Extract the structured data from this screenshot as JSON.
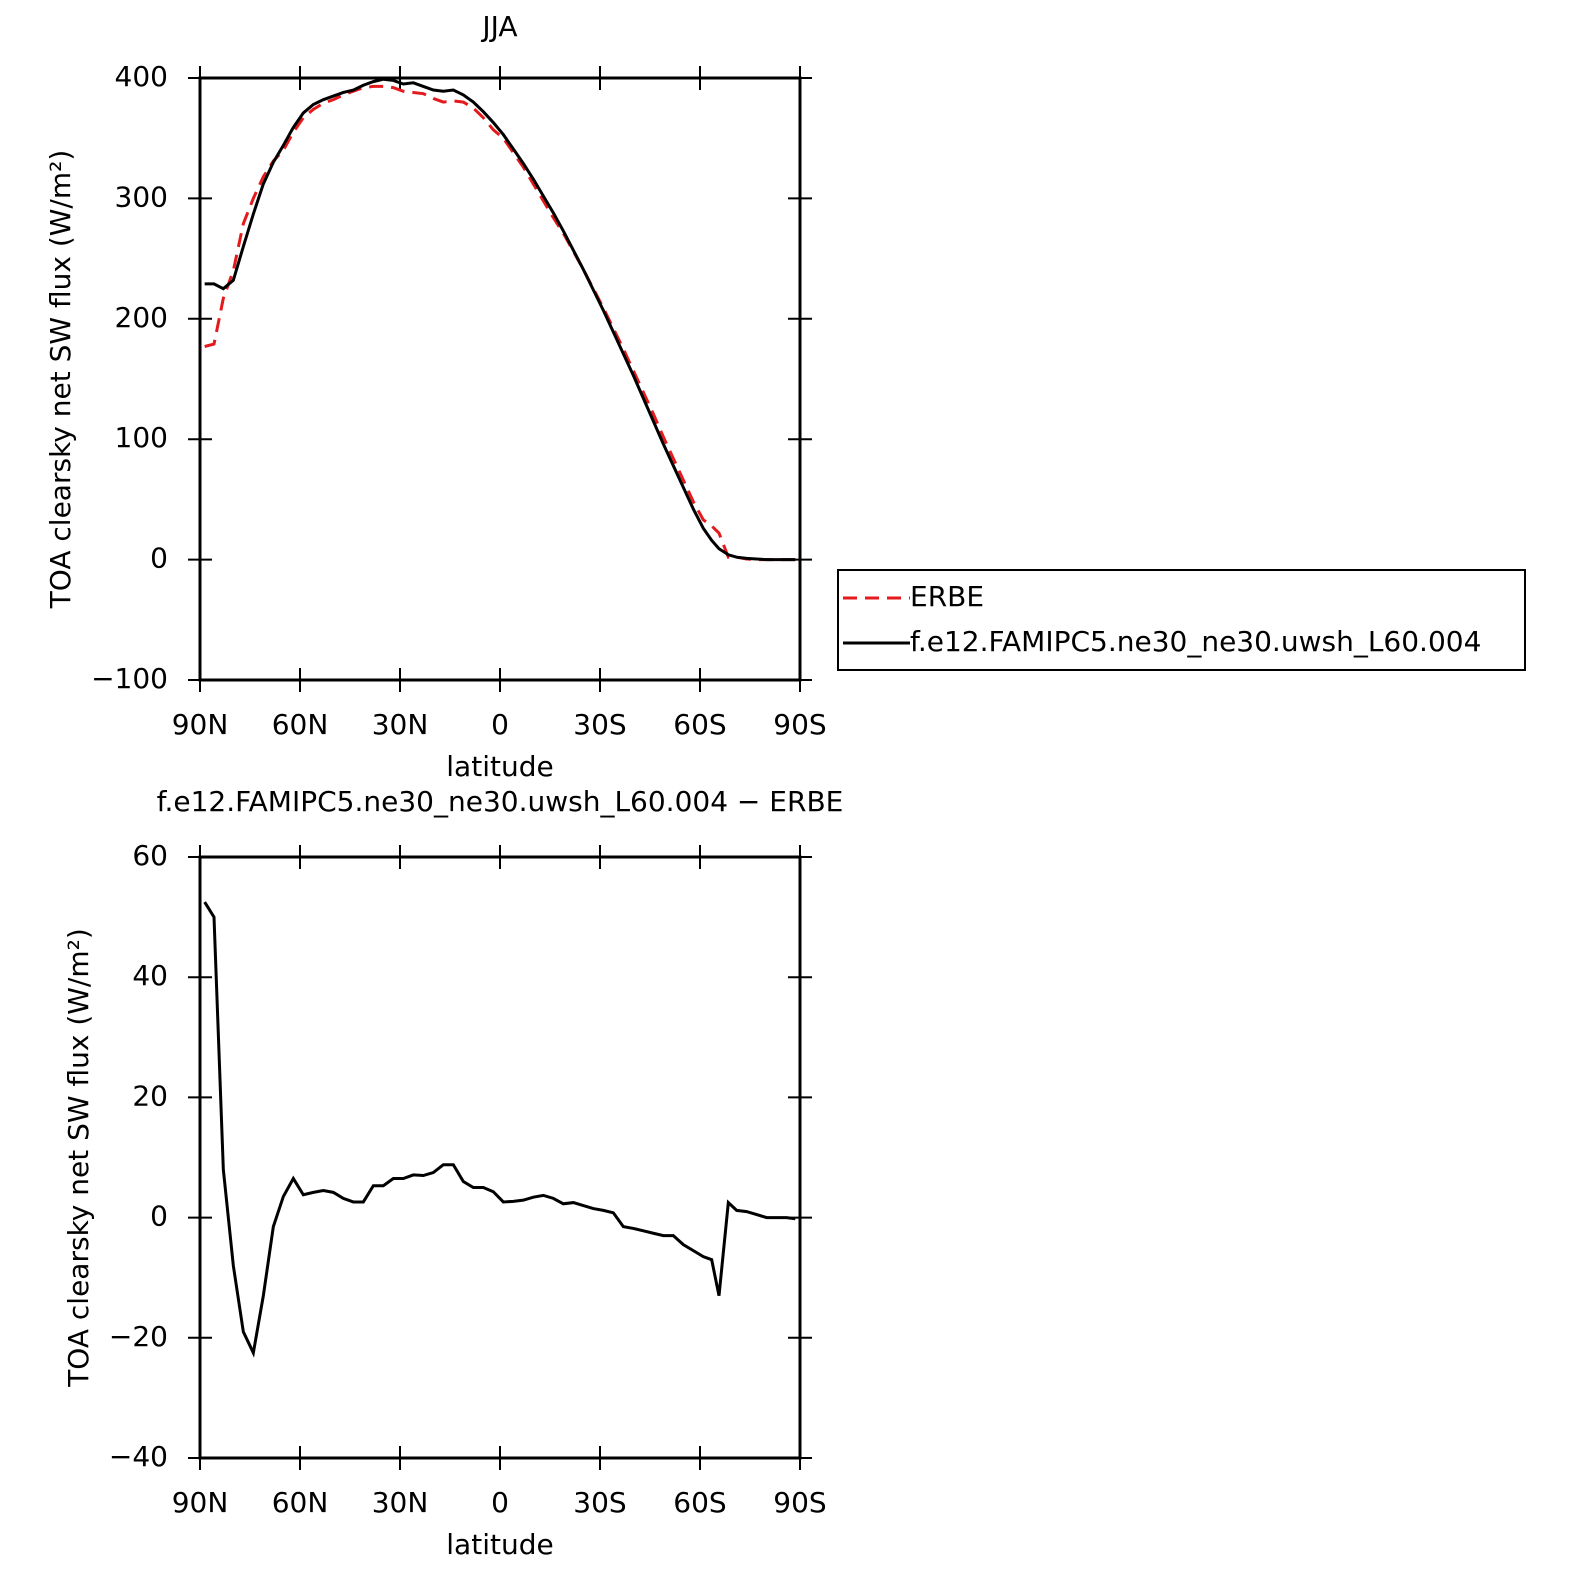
{
  "chart_data": [
    {
      "type": "line",
      "title": "JJA",
      "ylabel": "TOA clearsky net SW flux (W/m²)",
      "xlabel": "latitude",
      "legend": "right",
      "x": [
        88.6,
        85.8,
        83,
        80,
        77,
        74,
        71,
        68,
        65,
        62,
        59,
        56,
        53,
        50,
        47,
        44,
        41,
        38,
        35,
        32,
        29,
        26,
        23,
        20,
        17,
        14,
        11,
        8,
        5,
        2,
        -1,
        -4,
        -7,
        -10,
        -13,
        -16,
        -19,
        -22,
        -25,
        -28,
        -31,
        -34,
        -37,
        -40,
        -43,
        -46,
        -49,
        -52,
        -55,
        -58,
        -61,
        -63.5,
        -65.7,
        -68.5,
        -71,
        -74,
        -77,
        -80,
        -83,
        -86,
        -88.6
      ],
      "series": [
        {
          "name": "ERBE",
          "color": "#e41a1c",
          "linestyle": "dashed",
          "values": [
            177,
            179,
            217,
            240,
            279,
            300,
            318,
            331,
            340,
            355,
            367,
            374,
            379,
            382,
            386,
            389,
            392,
            393,
            393,
            392,
            389,
            388,
            387,
            383,
            380,
            381,
            380,
            375,
            367,
            357,
            350,
            338,
            326,
            312,
            298,
            284,
            271,
            256,
            241,
            225,
            209,
            192,
            175,
            157,
            139,
            121,
            102,
            84,
            66,
            48,
            33,
            28,
            22,
            2,
            2,
            0.5,
            0,
            0,
            0,
            0,
            0
          ]
        },
        {
          "name": "f.e12.FAMIPC5.ne30_ne30.uwsh_L60.004",
          "color": "#000000",
          "linestyle": "solid",
          "values": [
            229,
            229,
            225,
            232,
            260,
            287,
            312,
            330,
            344,
            359,
            371,
            378,
            382,
            385,
            388,
            390,
            394,
            397,
            399,
            398,
            395,
            396,
            393,
            390,
            389,
            390,
            386,
            380,
            372,
            363,
            353,
            341,
            329,
            316,
            302,
            288,
            273,
            257,
            241,
            224,
            207,
            189,
            171,
            153,
            134,
            115,
            96,
            78,
            60,
            42,
            26,
            16,
            9,
            4,
            2,
            1,
            0.5,
            0,
            0,
            0,
            0
          ]
        }
      ],
      "xlim": [
        90,
        -90
      ],
      "xticks": [
        {
          "value": 90,
          "label": "90N"
        },
        {
          "value": 60,
          "label": "60N"
        },
        {
          "value": 30,
          "label": "30N"
        },
        0,
        {
          "value": -30,
          "label": "30S"
        },
        {
          "value": -60,
          "label": "60S"
        },
        {
          "value": -90,
          "label": "90S"
        }
      ],
      "ylim": [
        -100,
        400
      ],
      "yticks": [
        {
          "value": -100,
          "label": "−100"
        },
        0,
        100,
        200,
        300,
        400
      ]
    },
    {
      "type": "line",
      "title": "f.e12.FAMIPC5.ne30_ne30.uwsh_L60.004 − ERBE",
      "ylabel": "TOA clearsky net SW flux (W/m²)",
      "xlabel": "latitude",
      "color": "#000000",
      "x": [
        88.6,
        85.8,
        83,
        80,
        77,
        74,
        71,
        68,
        65,
        62,
        59,
        56,
        53,
        50,
        47,
        44,
        41,
        38,
        35,
        32,
        29,
        26,
        23,
        20,
        17,
        14,
        11,
        8,
        5,
        2,
        -1,
        -4,
        -7,
        -10,
        -13,
        -16,
        -19,
        -22,
        -25,
        -28,
        -31,
        -34,
        -37,
        -40,
        -43,
        -46,
        -49,
        -52,
        -55,
        -58,
        -61,
        -63.5,
        -65.7,
        -68.5,
        -71,
        -74,
        -77,
        -80,
        -83,
        -86,
        -88.6
      ],
      "values": [
        52.5,
        50,
        8,
        -8,
        -19,
        -22.5,
        -13,
        -1.5,
        3.5,
        6.5,
        3.8,
        4.2,
        4.5,
        4.2,
        3.2,
        2.6,
        2.6,
        5.3,
        5.3,
        6.5,
        6.5,
        7.1,
        7,
        7.5,
        8.8,
        8.8,
        6,
        5,
        5,
        4.3,
        2.6,
        2.7,
        2.9,
        3.4,
        3.7,
        3.2,
        2.3,
        2.5,
        2,
        1.5,
        1.2,
        0.8,
        -1.5,
        -1.8,
        -2.2,
        -2.6,
        -3,
        -3,
        -4.5,
        -5.5,
        -6.5,
        -7,
        -13,
        2.5,
        1.2,
        1,
        0.5,
        0,
        0,
        0,
        -0.2
      ],
      "xlim": [
        90,
        -90
      ],
      "xticks": [
        {
          "value": 90,
          "label": "90N"
        },
        {
          "value": 60,
          "label": "60N"
        },
        {
          "value": 30,
          "label": "30N"
        },
        0,
        {
          "value": -30,
          "label": "30S"
        },
        {
          "value": -60,
          "label": "60S"
        },
        {
          "value": -90,
          "label": "90S"
        }
      ],
      "ylim": [
        -40,
        60
      ],
      "yticks": [
        {
          "value": -40,
          "label": "−40"
        },
        {
          "value": -20,
          "label": "−20"
        },
        0,
        20,
        40,
        60
      ]
    }
  ]
}
